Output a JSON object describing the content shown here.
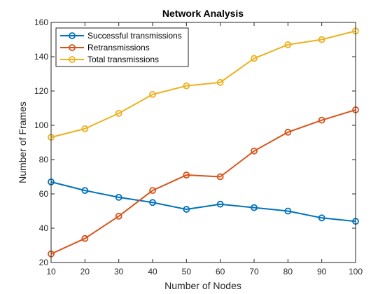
{
  "chart_data": {
    "type": "line",
    "title": "Network Analysis",
    "xlabel": "Number of Nodes",
    "ylabel": "Number of Frames",
    "xlim": [
      10,
      100
    ],
    "ylim": [
      20,
      160
    ],
    "xticks": [
      10,
      20,
      30,
      40,
      50,
      60,
      70,
      80,
      90,
      100
    ],
    "yticks": [
      20,
      40,
      60,
      80,
      100,
      120,
      140,
      160
    ],
    "x": [
      10,
      20,
      30,
      40,
      50,
      60,
      70,
      80,
      90,
      100
    ],
    "grid": false,
    "legend_position": "top-left",
    "marker": "circle",
    "series": [
      {
        "name": "Successful transmissions",
        "color": "#0072BD",
        "values": [
          67,
          62,
          58,
          55,
          51,
          54,
          52,
          50,
          46,
          44
        ]
      },
      {
        "name": "Retransmissions",
        "color": "#D95319",
        "values": [
          25,
          34,
          47,
          62,
          71,
          70,
          85,
          96,
          103,
          109
        ]
      },
      {
        "name": "Total transmissions",
        "color": "#EDB120",
        "values": [
          93,
          98,
          107,
          118,
          123,
          125,
          139,
          147,
          150,
          155
        ]
      }
    ]
  }
}
